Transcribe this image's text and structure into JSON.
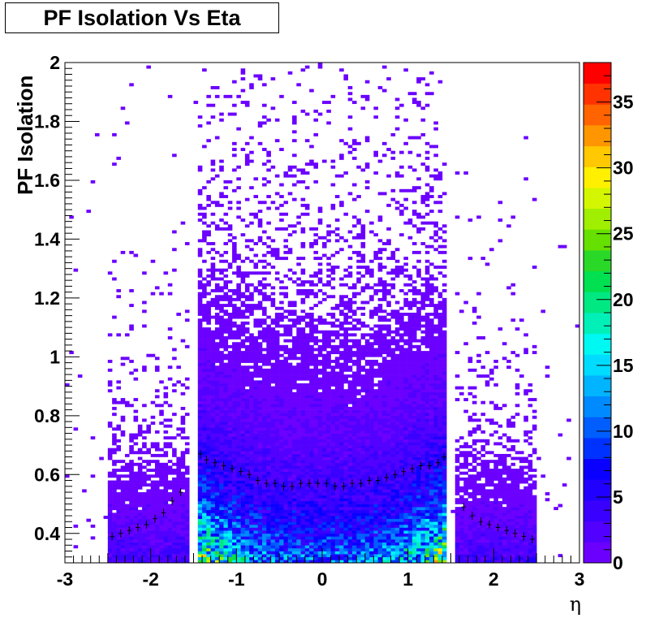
{
  "chart_data": {
    "type": "heatmap",
    "title": "PF Isolation Vs Eta",
    "xlabel": "η",
    "ylabel": "PF Isolation",
    "xlim": [
      -3,
      3
    ],
    "ylim": [
      0.3,
      2.0
    ],
    "x_ticks": [
      "-3",
      "-2",
      "-1",
      "0",
      "1",
      "2",
      "3"
    ],
    "y_ticks": [
      "0.4",
      "0.6",
      "0.8",
      "1",
      "1.2",
      "1.4",
      "1.6",
      "1.8",
      "2"
    ],
    "z_range": [
      0,
      38
    ],
    "z_ticks": [
      "0",
      "5",
      "10",
      "15",
      "20",
      "25",
      "30",
      "35"
    ],
    "palette": [
      "#6b00ff",
      "#5200ff",
      "#3a00ff",
      "#2200ff",
      "#0a00ff",
      "#0032ff",
      "#005eff",
      "#008aff",
      "#00b4ff",
      "#00dcff",
      "#00f8f2",
      "#00f0b8",
      "#00e882",
      "#00e050",
      "#2ad828",
      "#66e000",
      "#a0ee00",
      "#d4f600",
      "#fff000",
      "#ffc800",
      "#ff9600",
      "#ff6400",
      "#ff3200",
      "#ff0000"
    ],
    "eta_acceptance": [
      [
        -2.5,
        -1.566
      ],
      [
        -1.4442,
        1.4442
      ],
      [
        1.566,
        2.5
      ]
    ],
    "profile": [
      {
        "x": -2.45,
        "y": 0.39
      },
      {
        "x": -2.35,
        "y": 0.4
      },
      {
        "x": -2.25,
        "y": 0.41
      },
      {
        "x": -2.15,
        "y": 0.42
      },
      {
        "x": -2.05,
        "y": 0.43
      },
      {
        "x": -1.95,
        "y": 0.45
      },
      {
        "x": -1.85,
        "y": 0.47
      },
      {
        "x": -1.75,
        "y": 0.51
      },
      {
        "x": -1.65,
        "y": 0.54
      },
      {
        "x": -1.42,
        "y": 0.67
      },
      {
        "x": -1.35,
        "y": 0.65
      },
      {
        "x": -1.25,
        "y": 0.64
      },
      {
        "x": -1.15,
        "y": 0.63
      },
      {
        "x": -1.05,
        "y": 0.62
      },
      {
        "x": -0.95,
        "y": 0.61
      },
      {
        "x": -0.85,
        "y": 0.6
      },
      {
        "x": -0.75,
        "y": 0.58
      },
      {
        "x": -0.65,
        "y": 0.57
      },
      {
        "x": -0.55,
        "y": 0.57
      },
      {
        "x": -0.45,
        "y": 0.56
      },
      {
        "x": -0.35,
        "y": 0.56
      },
      {
        "x": -0.25,
        "y": 0.57
      },
      {
        "x": -0.15,
        "y": 0.57
      },
      {
        "x": -0.05,
        "y": 0.57
      },
      {
        "x": 0.05,
        "y": 0.57
      },
      {
        "x": 0.15,
        "y": 0.56
      },
      {
        "x": 0.25,
        "y": 0.56
      },
      {
        "x": 0.35,
        "y": 0.57
      },
      {
        "x": 0.45,
        "y": 0.57
      },
      {
        "x": 0.55,
        "y": 0.58
      },
      {
        "x": 0.65,
        "y": 0.58
      },
      {
        "x": 0.75,
        "y": 0.59
      },
      {
        "x": 0.85,
        "y": 0.6
      },
      {
        "x": 0.95,
        "y": 0.61
      },
      {
        "x": 1.05,
        "y": 0.62
      },
      {
        "x": 1.15,
        "y": 0.63
      },
      {
        "x": 1.25,
        "y": 0.63
      },
      {
        "x": 1.35,
        "y": 0.64
      },
      {
        "x": 1.42,
        "y": 0.66
      },
      {
        "x": 1.65,
        "y": 0.49
      },
      {
        "x": 1.75,
        "y": 0.46
      },
      {
        "x": 1.85,
        "y": 0.44
      },
      {
        "x": 1.95,
        "y": 0.43
      },
      {
        "x": 2.05,
        "y": 0.42
      },
      {
        "x": 2.15,
        "y": 0.41
      },
      {
        "x": 2.25,
        "y": 0.4
      },
      {
        "x": 2.35,
        "y": 0.39
      },
      {
        "x": 2.45,
        "y": 0.38
      }
    ]
  }
}
